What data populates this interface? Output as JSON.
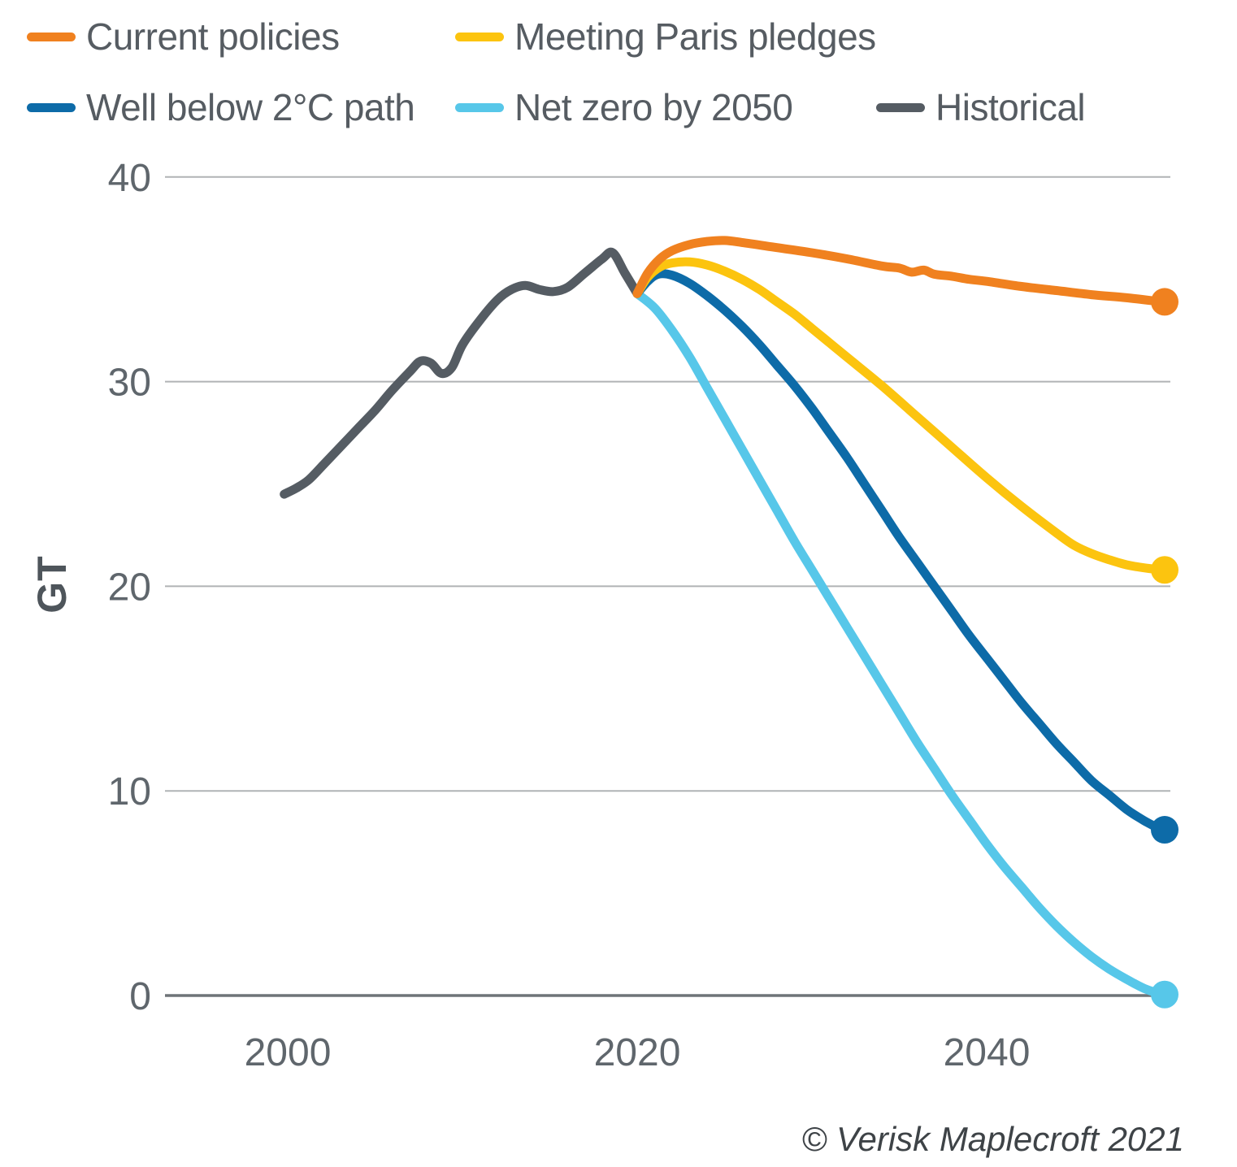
{
  "chart_data": {
    "type": "line",
    "title": "",
    "xlabel": "",
    "ylabel": "GT",
    "ylim": [
      0,
      40
    ],
    "yticks": [
      0,
      10,
      20,
      30,
      40
    ],
    "xticks": [
      2000,
      2020,
      2040
    ],
    "x_range_years": [
      1999.8,
      2050
    ],
    "grid": true,
    "legend_position": "top",
    "legend_rows": [
      [
        0,
        1
      ],
      [
        2,
        3,
        4
      ]
    ],
    "colors": {
      "gridline": "#B0B3B5",
      "zero_axis": "#6F7478",
      "tick_label": "#5F666C",
      "axis_title": "#4E555B"
    },
    "series": [
      {
        "name": "Current policies",
        "color": "#F0811F",
        "end_dot": true,
        "points": [
          [
            2020,
            34.3
          ],
          [
            2020.6,
            35.3
          ],
          [
            2021.3,
            36.0
          ],
          [
            2022,
            36.4
          ],
          [
            2023,
            36.7
          ],
          [
            2024,
            36.85
          ],
          [
            2025,
            36.9
          ],
          [
            2026,
            36.8
          ],
          [
            2028,
            36.55
          ],
          [
            2030,
            36.3
          ],
          [
            2032,
            36.0
          ],
          [
            2034,
            35.65
          ],
          [
            2035,
            35.55
          ],
          [
            2035.7,
            35.35
          ],
          [
            2036.4,
            35.45
          ],
          [
            2037,
            35.25
          ],
          [
            2038,
            35.15
          ],
          [
            2039,
            35.0
          ],
          [
            2040,
            34.9
          ],
          [
            2042,
            34.65
          ],
          [
            2044,
            34.45
          ],
          [
            2046,
            34.25
          ],
          [
            2048,
            34.1
          ],
          [
            2050,
            33.9
          ]
        ]
      },
      {
        "name": "Meeting Paris pledges",
        "color": "#FCC40F",
        "end_dot": true,
        "points": [
          [
            2020,
            34.3
          ],
          [
            2020.6,
            35.1
          ],
          [
            2021.3,
            35.6
          ],
          [
            2022,
            35.8
          ],
          [
            2023,
            35.85
          ],
          [
            2024,
            35.7
          ],
          [
            2025,
            35.4
          ],
          [
            2026,
            35.0
          ],
          [
            2027,
            34.5
          ],
          [
            2028,
            33.9
          ],
          [
            2029,
            33.3
          ],
          [
            2030,
            32.6
          ],
          [
            2032,
            31.2
          ],
          [
            2034,
            29.8
          ],
          [
            2036,
            28.3
          ],
          [
            2038,
            26.8
          ],
          [
            2040,
            25.3
          ],
          [
            2042,
            23.9
          ],
          [
            2044,
            22.6
          ],
          [
            2045,
            22.0
          ],
          [
            2046,
            21.6
          ],
          [
            2047,
            21.3
          ],
          [
            2048,
            21.05
          ],
          [
            2049,
            20.9
          ],
          [
            2050,
            20.8
          ]
        ]
      },
      {
        "name": "Well below 2°C path",
        "color": "#0D6BA8",
        "end_dot": true,
        "points": [
          [
            2020,
            34.3
          ],
          [
            2020.6,
            34.9
          ],
          [
            2021.2,
            35.25
          ],
          [
            2022,
            35.2
          ],
          [
            2023,
            34.8
          ],
          [
            2024,
            34.2
          ],
          [
            2025,
            33.5
          ],
          [
            2026,
            32.7
          ],
          [
            2027,
            31.8
          ],
          [
            2028,
            30.8
          ],
          [
            2029,
            29.8
          ],
          [
            2030,
            28.7
          ],
          [
            2031,
            27.5
          ],
          [
            2032,
            26.3
          ],
          [
            2033,
            25.0
          ],
          [
            2034,
            23.7
          ],
          [
            2035,
            22.4
          ],
          [
            2036,
            21.2
          ],
          [
            2037,
            20.0
          ],
          [
            2038,
            18.8
          ],
          [
            2039,
            17.6
          ],
          [
            2040,
            16.5
          ],
          [
            2041,
            15.4
          ],
          [
            2042,
            14.3
          ],
          [
            2043,
            13.3
          ],
          [
            2044,
            12.3
          ],
          [
            2045,
            11.4
          ],
          [
            2046,
            10.5
          ],
          [
            2047,
            9.8
          ],
          [
            2048,
            9.1
          ],
          [
            2049,
            8.55
          ],
          [
            2050,
            8.1
          ]
        ]
      },
      {
        "name": "Net zero by 2050",
        "color": "#57C7E9",
        "end_dot": true,
        "points": [
          [
            2020,
            34.3
          ],
          [
            2021,
            33.6
          ],
          [
            2022,
            32.5
          ],
          [
            2023,
            31.2
          ],
          [
            2024,
            29.7
          ],
          [
            2025,
            28.2
          ],
          [
            2026,
            26.7
          ],
          [
            2027,
            25.2
          ],
          [
            2028,
            23.7
          ],
          [
            2029,
            22.2
          ],
          [
            2030,
            20.8
          ],
          [
            2031,
            19.4
          ],
          [
            2032,
            18.0
          ],
          [
            2033,
            16.6
          ],
          [
            2034,
            15.2
          ],
          [
            2035,
            13.8
          ],
          [
            2036,
            12.4
          ],
          [
            2037,
            11.1
          ],
          [
            2038,
            9.8
          ],
          [
            2039,
            8.6
          ],
          [
            2040,
            7.4
          ],
          [
            2041,
            6.3
          ],
          [
            2042,
            5.3
          ],
          [
            2043,
            4.3
          ],
          [
            2044,
            3.4
          ],
          [
            2045,
            2.6
          ],
          [
            2046,
            1.9
          ],
          [
            2047,
            1.3
          ],
          [
            2048,
            0.8
          ],
          [
            2049,
            0.35
          ],
          [
            2050,
            0.05
          ]
        ]
      },
      {
        "name": "Historical",
        "color": "#555C63",
        "end_dot": false,
        "points": [
          [
            1999.8,
            24.5
          ],
          [
            2000.5,
            24.8
          ],
          [
            2001.2,
            25.2
          ],
          [
            2002,
            25.9
          ],
          [
            2003,
            26.8
          ],
          [
            2004,
            27.7
          ],
          [
            2005,
            28.6
          ],
          [
            2006,
            29.6
          ],
          [
            2007,
            30.5
          ],
          [
            2007.6,
            31.0
          ],
          [
            2008.2,
            30.9
          ],
          [
            2008.8,
            30.4
          ],
          [
            2009.4,
            30.7
          ],
          [
            2010,
            31.8
          ],
          [
            2011,
            33.0
          ],
          [
            2012,
            34.0
          ],
          [
            2012.8,
            34.5
          ],
          [
            2013.6,
            34.7
          ],
          [
            2014.4,
            34.5
          ],
          [
            2015.2,
            34.4
          ],
          [
            2016,
            34.6
          ],
          [
            2017,
            35.3
          ],
          [
            2018,
            36.0
          ],
          [
            2018.6,
            36.3
          ],
          [
            2019.3,
            35.3
          ],
          [
            2020,
            34.3
          ]
        ]
      }
    ],
    "end_values": {
      "current_policies": 33.9,
      "meeting_paris_pledges": 20.8,
      "well_below_2c_path": 8.1,
      "net_zero_by_2050": 0
    },
    "attribution": "© Verisk Maplecroft 2021"
  }
}
